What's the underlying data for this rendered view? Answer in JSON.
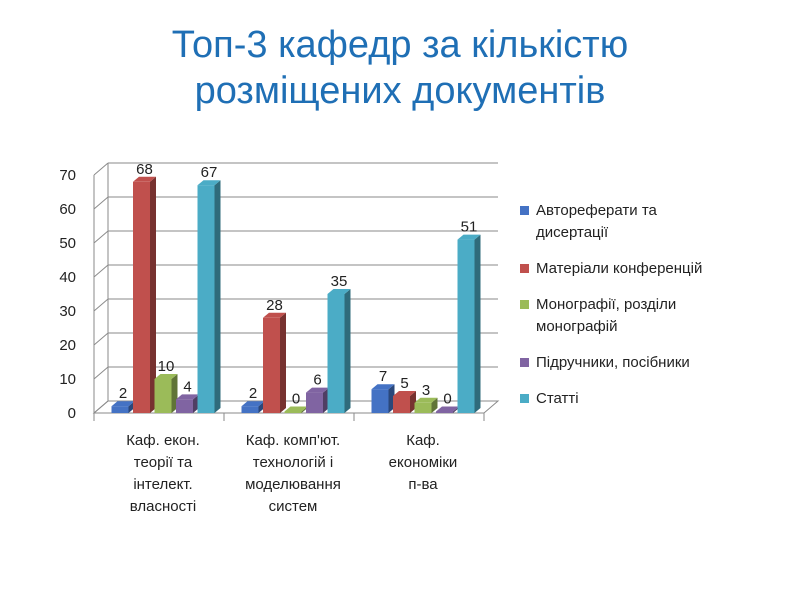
{
  "title_line1": "Топ-3 кафедр за кількістю",
  "title_line2": "розміщених документів",
  "chart_data": {
    "type": "bar",
    "title": "Топ-3 кафедр за кількістю розміщених документів",
    "categories": [
      [
        "Каф.  екон.",
        "теорії та",
        "інтелект.",
        "власності"
      ],
      [
        "Каф. комп'ют.",
        "технологій і",
        "моделювання",
        "систем"
      ],
      [
        "Каф.",
        "економіки",
        "п-ва"
      ]
    ],
    "series": [
      {
        "name": "Автореферати та дисертації",
        "legend": [
          "Автореферати та",
          "дисертації"
        ],
        "color": "#4472c4",
        "values": [
          2,
          2,
          7
        ]
      },
      {
        "name": "Матеріали конференцій",
        "legend": [
          "Матеріали конференцій"
        ],
        "color": "#c0504d",
        "values": [
          68,
          28,
          5
        ]
      },
      {
        "name": "Монографії, розділи монографій",
        "legend": [
          "Монографії, розділи",
          "монографій"
        ],
        "color": "#9bbb59",
        "values": [
          10,
          0,
          3
        ]
      },
      {
        "name": "Підручники, посібники",
        "legend": [
          "Підручники, посібники"
        ],
        "color": "#8064a2",
        "values": [
          4,
          6,
          0
        ]
      },
      {
        "name": "Статті",
        "legend": [
          "Статті"
        ],
        "color": "#4bacc6",
        "values": [
          67,
          35,
          51
        ]
      }
    ],
    "yticks": [
      "0",
      "10",
      "20",
      "30",
      "40",
      "50",
      "60",
      "70"
    ],
    "ylim": [
      0,
      70
    ],
    "grid": true,
    "legend_position": "right"
  }
}
